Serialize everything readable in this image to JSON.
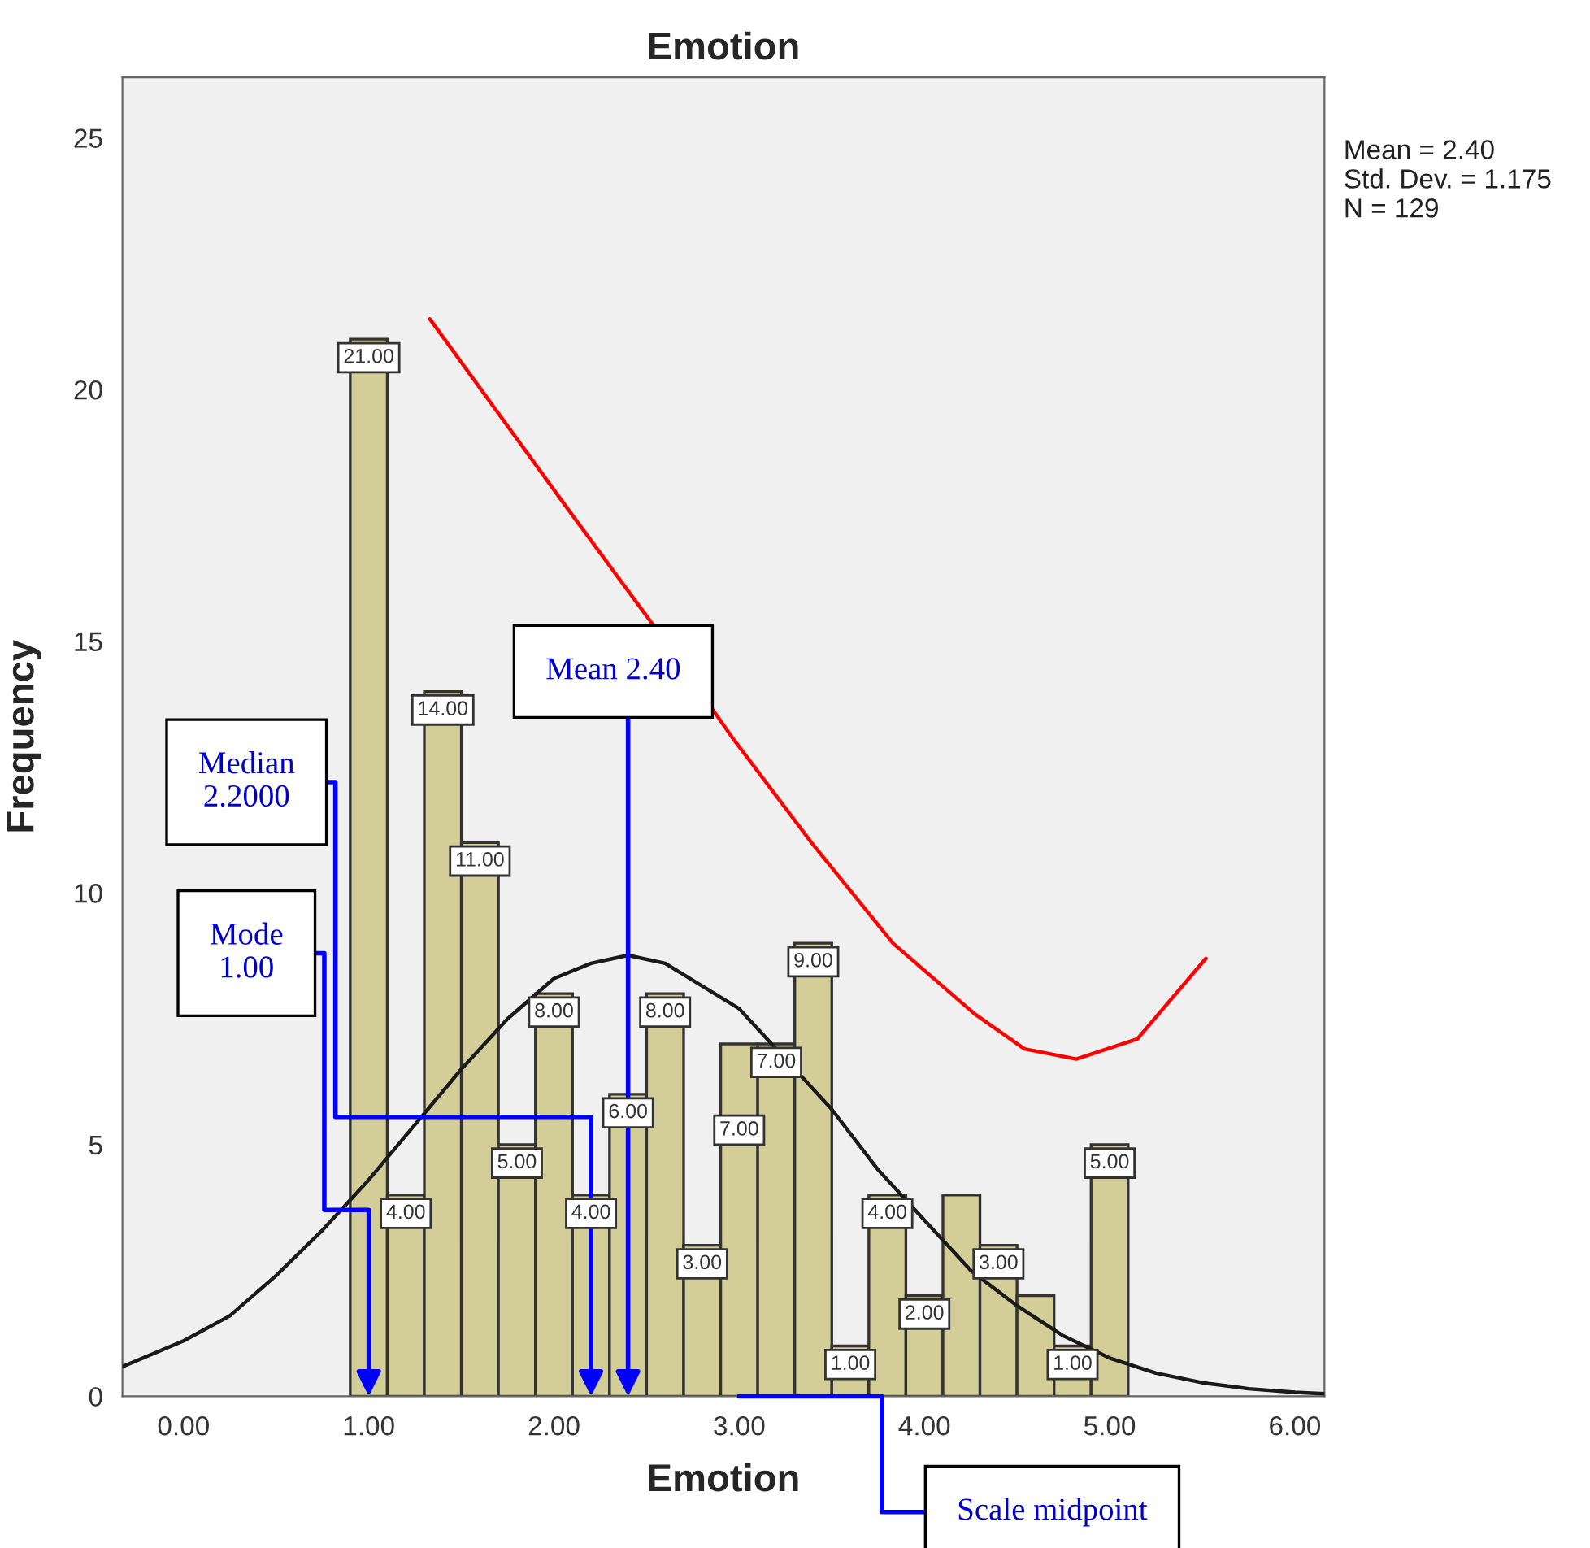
{
  "chart_data": {
    "type": "histogram",
    "title": "Emotion",
    "xlabel": "Emotion",
    "ylabel": "Frequency",
    "bins": [
      0.9,
      1.1,
      1.3,
      1.5,
      1.7,
      1.9,
      2.1,
      2.3,
      2.5,
      2.7,
      2.9,
      3.1,
      3.3,
      3.5,
      3.7,
      3.9,
      4.1,
      4.3,
      4.5,
      4.7,
      4.9,
      5.1
    ],
    "values": [
      21,
      4,
      14,
      11,
      5,
      8,
      4,
      6,
      8,
      3,
      7,
      7,
      9,
      1,
      4,
      2,
      4,
      3,
      2,
      1,
      5
    ],
    "value_labels": [
      "21.00",
      "4.00",
      "14.00",
      "11.00",
      "5.00",
      "8.00",
      "4.00",
      "6.00",
      "8.00",
      "3.00",
      "7.00",
      "7.00",
      "9.00",
      "1.00",
      "4.00",
      "2.00",
      null,
      "3.00",
      null,
      "1.00",
      "5.00"
    ],
    "color": "#d3cd97",
    "series": [
      {
        "type": "line",
        "color": "#1a1a1a",
        "x": [
          -0.33,
          0,
          0.25,
          0.5,
          0.75,
          1.0,
          1.25,
          1.5,
          1.75,
          2.0,
          2.2,
          2.4,
          2.6,
          3.0,
          3.5,
          3.75,
          4.0,
          4.25,
          4.5,
          4.75,
          5.0,
          5.25,
          5.5,
          5.75,
          6.0,
          6.16
        ],
        "values": [
          0.59,
          1.1,
          1.6,
          2.4,
          3.3,
          4.3,
          5.4,
          6.5,
          7.5,
          8.3,
          8.6,
          8.76,
          8.6,
          7.7,
          5.7,
          4.5,
          3.5,
          2.5,
          1.8,
          1.2,
          0.76,
          0.46,
          0.27,
          0.15,
          0.08,
          0.05
        ]
      },
      {
        "type": "line",
        "color": "#ff0000",
        "x": [
          1.33,
          2.08,
          2.52,
          2.96,
          3.39,
          3.83,
          4.27,
          4.54,
          4.82,
          5.15,
          5.52
        ],
        "values": [
          21.4,
          17.6,
          15.4,
          13.1,
          11.0,
          9.0,
          7.6,
          6.9,
          6.7,
          7.1,
          8.7
        ]
      }
    ],
    "xlim": [
      -0.33,
      6.16
    ],
    "ylim": [
      0,
      26.2
    ],
    "xticks": [
      {
        "value": 0,
        "label": "0.00"
      },
      {
        "value": 1,
        "label": "1.00"
      },
      {
        "value": 2,
        "label": "2.00"
      },
      {
        "value": 3,
        "label": "3.00"
      },
      {
        "value": 4,
        "label": "4.00"
      },
      {
        "value": 5,
        "label": "5.00"
      },
      {
        "value": 6,
        "label": "6.00"
      }
    ],
    "yticks": [
      0,
      5,
      10,
      15,
      20,
      25
    ],
    "annotations": [
      "Mean = 2.40\nStd. Dev. = 1.175\nN = 129",
      {
        "text": "Mean 2.40",
        "x": 2.4,
        "y": 0
      },
      {
        "text": "Median\n2.2000",
        "x": 2.2,
        "y": 0
      },
      {
        "text": "Mode\n1.00",
        "x": 1.0,
        "y": 0
      },
      {
        "text": "Scale midpoint",
        "x": 3.0,
        "y": 0
      }
    ]
  }
}
